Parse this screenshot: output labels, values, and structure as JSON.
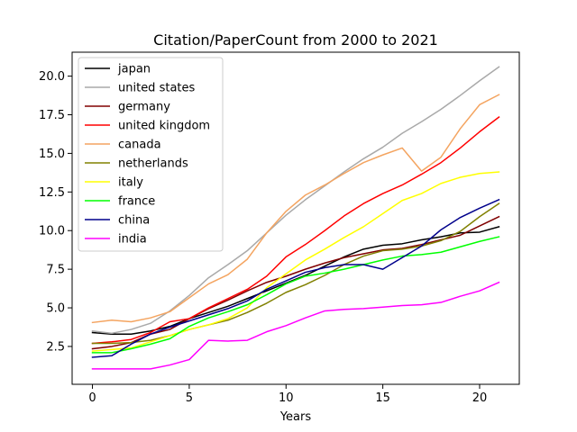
{
  "chart_data": {
    "type": "line",
    "title": "Citation/PaperCount from 2000 to 2021",
    "xlabel": "Years",
    "ylabel": "",
    "xlim": [
      -1.05,
      22.05
    ],
    "ylim": [
      0.05,
      21.55
    ],
    "xticks": [
      0,
      5,
      10,
      15,
      20
    ],
    "yticks": [
      2.5,
      5.0,
      7.5,
      10.0,
      12.5,
      15.0,
      17.5,
      20.0
    ],
    "ytick_labels": [
      "2.5",
      "5.0",
      "7.5",
      "10.0",
      "12.5",
      "15.0",
      "17.5",
      "20.0"
    ],
    "grid": false,
    "legend_position": "upper-left",
    "x": [
      0,
      1,
      2,
      3,
      4,
      5,
      6,
      7,
      8,
      9,
      10,
      11,
      12,
      13,
      14,
      15,
      16,
      17,
      18,
      19,
      20,
      21
    ],
    "series": [
      {
        "name": "japan",
        "color": "#000000",
        "values": [
          3.4,
          3.3,
          3.3,
          3.5,
          3.8,
          4.3,
          4.7,
          5.1,
          5.6,
          6.1,
          6.6,
          7.1,
          7.7,
          8.3,
          8.8,
          9.05,
          9.15,
          9.4,
          9.6,
          9.85,
          9.9,
          10.25
        ]
      },
      {
        "name": "united states",
        "color": "#a9a9a9",
        "values": [
          3.5,
          3.35,
          3.6,
          4.0,
          4.8,
          5.8,
          6.95,
          7.8,
          8.7,
          9.85,
          11.0,
          12.0,
          12.9,
          13.8,
          14.65,
          15.4,
          16.3,
          17.05,
          17.85,
          18.75,
          19.7,
          20.6
        ]
      },
      {
        "name": "germany",
        "color": "#800000",
        "values": [
          2.35,
          2.5,
          2.75,
          3.3,
          3.6,
          4.3,
          4.95,
          5.5,
          6.1,
          6.65,
          7.05,
          7.5,
          7.9,
          8.25,
          8.5,
          8.75,
          8.85,
          9.1,
          9.4,
          9.7,
          10.3,
          10.9
        ]
      },
      {
        "name": "united kingdom",
        "color": "#ff0000",
        "values": [
          2.7,
          2.8,
          2.95,
          3.4,
          4.1,
          4.3,
          5.0,
          5.6,
          6.2,
          7.05,
          8.3,
          9.1,
          10.0,
          10.95,
          11.75,
          12.4,
          12.95,
          13.65,
          14.4,
          15.35,
          16.4,
          17.35
        ]
      },
      {
        "name": "canada",
        "color": "#f4a460",
        "values": [
          4.05,
          4.2,
          4.1,
          4.35,
          4.75,
          5.65,
          6.55,
          7.15,
          8.15,
          9.85,
          11.25,
          12.3,
          12.95,
          13.7,
          14.4,
          14.9,
          15.35,
          13.85,
          14.75,
          16.6,
          18.15,
          18.8
        ]
      },
      {
        "name": "netherlands",
        "color": "#808000",
        "values": [
          2.7,
          2.7,
          2.75,
          2.9,
          3.2,
          3.6,
          3.9,
          4.2,
          4.7,
          5.3,
          6.0,
          6.5,
          7.1,
          7.8,
          8.35,
          8.7,
          8.8,
          9.0,
          9.35,
          9.95,
          10.9,
          11.75
        ]
      },
      {
        "name": "italy",
        "color": "#ffff00",
        "values": [
          2.2,
          2.3,
          2.4,
          2.8,
          3.2,
          3.6,
          3.9,
          4.3,
          5.0,
          6.3,
          7.2,
          8.1,
          8.8,
          9.55,
          10.25,
          11.1,
          11.95,
          12.4,
          13.05,
          13.45,
          13.7,
          13.8
        ]
      },
      {
        "name": "france",
        "color": "#00ff00",
        "values": [
          2.1,
          2.1,
          2.35,
          2.65,
          3.0,
          3.8,
          4.35,
          4.75,
          5.2,
          5.85,
          6.55,
          7.05,
          7.25,
          7.5,
          7.8,
          8.1,
          8.35,
          8.45,
          8.6,
          8.95,
          9.3,
          9.6
        ]
      },
      {
        "name": "china",
        "color": "#00008b",
        "values": [
          1.8,
          1.9,
          2.65,
          3.3,
          3.75,
          4.15,
          4.55,
          4.95,
          5.45,
          6.2,
          6.75,
          7.3,
          7.6,
          7.8,
          7.8,
          7.5,
          8.25,
          9.0,
          10.05,
          10.85,
          11.45,
          12.0
        ]
      },
      {
        "name": "india",
        "color": "#ff00ff",
        "values": [
          1.05,
          1.05,
          1.05,
          1.05,
          1.3,
          1.65,
          2.9,
          2.85,
          2.9,
          3.45,
          3.85,
          4.35,
          4.8,
          4.9,
          4.95,
          5.05,
          5.15,
          5.2,
          5.35,
          5.75,
          6.1,
          6.65
        ]
      }
    ]
  }
}
